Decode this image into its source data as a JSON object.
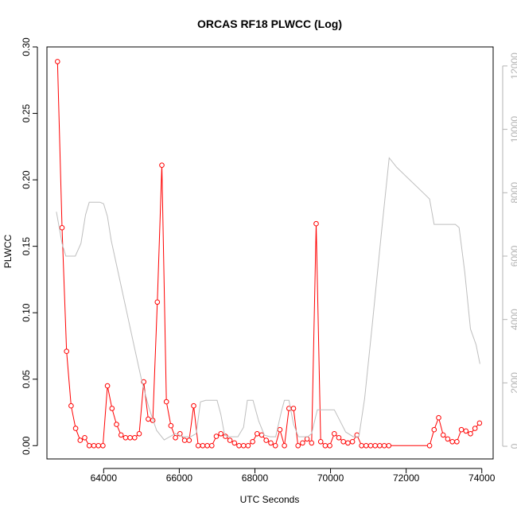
{
  "chart_data": {
    "type": "line",
    "title": "ORCAS RF18 PLWCC (Log)",
    "xlabel": "UTC Seconds",
    "ylabel": "PLWCC",
    "xlim": [
      62500,
      74300
    ],
    "ylim": [
      -0.01,
      0.3
    ],
    "y2lim": [
      -400,
      12600
    ],
    "x_ticks": [
      64000,
      66000,
      68000,
      70000,
      72000,
      74000
    ],
    "y_ticks": [
      0.0,
      0.05,
      0.1,
      0.15,
      0.2,
      0.25,
      0.3
    ],
    "y_tick_labels": [
      "0.00",
      "0.05",
      "0.10",
      "0.15",
      "0.20",
      "0.25",
      "0.30"
    ],
    "y2_ticks": [
      0,
      2000,
      4000,
      6000,
      8000,
      10000,
      12000
    ],
    "grid": false,
    "colors": {
      "primary": "#ff0000",
      "secondary": "#bebebe",
      "axis": "#000000",
      "axis2": "#b3b3b3"
    },
    "series": [
      {
        "axis": "left",
        "style": "line+circles",
        "x": [
          62780,
          62900,
          63020,
          63140,
          63260,
          63380,
          63500,
          63620,
          63740,
          63860,
          63980,
          64100,
          64220,
          64340,
          64460,
          64580,
          64700,
          64820,
          64940,
          65060,
          65180,
          65300,
          65420,
          65540,
          65660,
          65780,
          65900,
          66020,
          66140,
          66260,
          66380,
          66500,
          66620,
          66740,
          66860,
          66980,
          67100,
          67220,
          67340,
          67460,
          67580,
          67700,
          67820,
          67940,
          68060,
          68180,
          68300,
          68420,
          68540,
          68660,
          68780,
          68900,
          69020,
          69140,
          69260,
          69380,
          69500,
          69620,
          69740,
          69860,
          69980,
          70100,
          70220,
          70340,
          70460,
          70580,
          70700,
          70820,
          70940,
          71060,
          71180,
          71300,
          71420,
          71540,
          72620,
          72740,
          72860,
          72980,
          73100,
          73220,
          73340,
          73460,
          73580,
          73700,
          73820,
          73940
        ],
        "y": [
          0.289,
          0.164,
          0.071,
          0.03,
          0.013,
          0.004,
          0.006,
          0.0,
          0.0,
          0.0,
          0.0,
          0.045,
          0.028,
          0.016,
          0.008,
          0.006,
          0.006,
          0.006,
          0.009,
          0.048,
          0.02,
          0.019,
          0.108,
          0.211,
          0.033,
          0.015,
          0.006,
          0.009,
          0.004,
          0.004,
          0.03,
          0.0,
          0.0,
          0.0,
          0.0,
          0.007,
          0.009,
          0.007,
          0.004,
          0.002,
          0.0,
          0.0,
          0.0,
          0.003,
          0.009,
          0.008,
          0.004,
          0.002,
          0.0,
          0.012,
          0.0,
          0.028,
          0.028,
          0.0,
          0.002,
          0.005,
          0.002,
          0.167,
          0.003,
          0.0,
          0.0,
          0.009,
          0.006,
          0.003,
          0.002,
          0.003,
          0.008,
          0.0,
          0.0,
          0.0,
          0.0,
          0.0,
          0.0,
          0.0,
          0.0,
          0.012,
          0.021,
          0.008,
          0.005,
          0.003,
          0.003,
          0.012,
          0.011,
          0.009,
          0.013,
          0.017
        ]
      },
      {
        "axis": "right",
        "style": "line",
        "x": [
          62750,
          62900,
          63000,
          63120,
          63250,
          63400,
          63520,
          63620,
          63750,
          63900,
          64000,
          64100,
          64200,
          64400,
          64600,
          64800,
          65000,
          65200,
          65400,
          65600,
          65750,
          65900,
          66100,
          66300,
          66450,
          66560,
          66700,
          66900,
          67000,
          67100,
          67200,
          67300,
          67400,
          67550,
          67700,
          67800,
          67950,
          68100,
          68250,
          68400,
          68550,
          68700,
          68780,
          68900,
          69020,
          69150,
          69300,
          69400,
          69500,
          69650,
          69800,
          69950,
          70100,
          70250,
          70400,
          70600,
          70750,
          70900,
          71100,
          71350,
          71550,
          71750,
          72100,
          72450,
          72620,
          72740,
          72860,
          73000,
          73150,
          73300,
          73400,
          73550,
          73700,
          73850,
          73950
        ],
        "y": [
          7400,
          6400,
          6000,
          6000,
          6000,
          6400,
          7300,
          7700,
          7700,
          7700,
          7650,
          7250,
          6500,
          5400,
          4300,
          3200,
          2100,
          1200,
          500,
          200,
          300,
          400,
          300,
          300,
          400,
          1400,
          1450,
          1450,
          1450,
          1000,
          350,
          300,
          300,
          300,
          600,
          1450,
          1450,
          800,
          350,
          300,
          300,
          1100,
          1450,
          1450,
          700,
          300,
          300,
          300,
          400,
          1150,
          1150,
          1150,
          1150,
          800,
          450,
          300,
          300,
          1500,
          3800,
          6800,
          9100,
          8800,
          8400,
          8000,
          7800,
          7000,
          7000,
          7000,
          7000,
          7000,
          6900,
          5500,
          3700,
          3200,
          2600
        ]
      }
    ]
  }
}
